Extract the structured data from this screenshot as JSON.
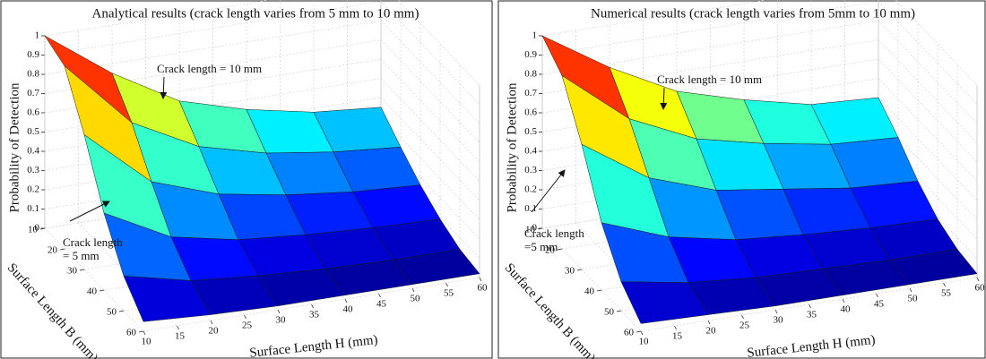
{
  "chart_data": [
    {
      "type": "surface3d",
      "colormap": "jet",
      "title": "Analytical results (crack length varies from 5 mm to 10 mm)",
      "xlabel": "Surface Length H (mm)",
      "ylabel": "Surface Length B (mm)",
      "zlabel": "Probability of Detection",
      "x": [
        10,
        20,
        30,
        40,
        50,
        60
      ],
      "y": [
        10,
        20,
        30,
        40,
        50,
        60
      ],
      "z": [
        [
          1.0,
          0.75,
          0.55,
          0.45,
          0.38,
          0.35
        ],
        [
          0.95,
          0.6,
          0.42,
          0.33,
          0.28,
          0.25
        ],
        [
          0.7,
          0.4,
          0.28,
          0.22,
          0.18,
          0.16
        ],
        [
          0.4,
          0.22,
          0.15,
          0.12,
          0.1,
          0.09
        ],
        [
          0.18,
          0.1,
          0.07,
          0.05,
          0.04,
          0.04
        ],
        [
          0.05,
          0.03,
          0.02,
          0.02,
          0.02,
          0.02
        ]
      ],
      "xlim": [
        10,
        60
      ],
      "ylim": [
        10,
        60
      ],
      "zlim": [
        0,
        1
      ],
      "xticks": [
        10,
        15,
        20,
        25,
        30,
        35,
        40,
        45,
        50,
        55,
        60
      ],
      "yticks": [
        10,
        20,
        30,
        40,
        50,
        60
      ],
      "zticks": [
        0,
        0.1,
        0.2,
        0.3,
        0.4,
        0.5,
        0.6,
        0.7,
        0.8,
        0.9,
        1
      ],
      "annotations": [
        {
          "lines": [
            "Crack length = 10 mm"
          ]
        },
        {
          "lines": [
            "Crack length",
            "= 5 mm"
          ]
        }
      ]
    },
    {
      "type": "surface3d",
      "colormap": "jet",
      "title": "Numerical results (crack length varies from 5mm to 10 mm)",
      "xlabel": "Surface Length H (mm)",
      "ylabel": "Surface Length B (mm)",
      "zlabel": "Probability of Detection",
      "x": [
        10,
        20,
        30,
        40,
        50,
        60
      ],
      "y": [
        10,
        20,
        30,
        40,
        50,
        60
      ],
      "z": [
        [
          1.0,
          0.78,
          0.6,
          0.5,
          0.42,
          0.4
        ],
        [
          0.9,
          0.62,
          0.46,
          0.38,
          0.32,
          0.3
        ],
        [
          0.65,
          0.42,
          0.3,
          0.25,
          0.2,
          0.18
        ],
        [
          0.35,
          0.22,
          0.15,
          0.12,
          0.1,
          0.09
        ],
        [
          0.15,
          0.09,
          0.06,
          0.05,
          0.04,
          0.04
        ],
        [
          0.04,
          0.03,
          0.02,
          0.02,
          0.02,
          0.02
        ]
      ],
      "xlim": [
        10,
        60
      ],
      "ylim": [
        10,
        60
      ],
      "zlim": [
        0,
        1
      ],
      "xticks": [
        10,
        15,
        20,
        25,
        30,
        35,
        40,
        45,
        50,
        55,
        60
      ],
      "yticks": [
        10,
        20,
        30,
        40,
        50,
        60
      ],
      "zticks": [
        0,
        0.1,
        0.2,
        0.3,
        0.4,
        0.5,
        0.6,
        0.7,
        0.8,
        0.9,
        1
      ],
      "annotations": [
        {
          "lines": [
            "Crack length = 10 mm"
          ]
        },
        {
          "lines": [
            "Crack length",
            "=5 mm"
          ]
        }
      ]
    }
  ]
}
